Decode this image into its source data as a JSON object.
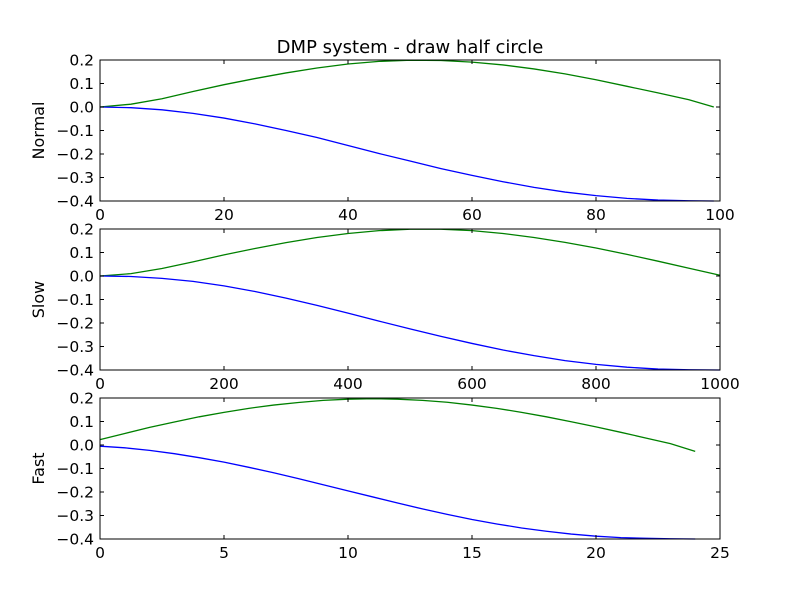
{
  "figure": {
    "title": "DMP system - draw half circle"
  },
  "chart_data": [
    {
      "type": "line",
      "ylabel": "Normal",
      "xlim": [
        0,
        100
      ],
      "ylim": [
        -0.4,
        0.2
      ],
      "xticks": [
        0,
        20,
        40,
        60,
        80,
        100
      ],
      "xtick_labels": [
        "0",
        "20",
        "40",
        "60",
        "80",
        "100"
      ],
      "yticks": [
        -0.4,
        -0.3,
        -0.2,
        -0.1,
        0.0,
        0.1,
        0.2
      ],
      "ytick_labels": [
        "−0.4",
        "−0.3",
        "−0.2",
        "−0.1",
        "0.0",
        "0.1",
        "0.2"
      ],
      "grid": false,
      "series": [
        {
          "color": "#008000",
          "x": [
            0,
            5,
            10,
            15,
            20,
            25,
            30,
            35,
            40,
            45,
            50,
            55,
            60,
            65,
            70,
            75,
            80,
            85,
            90,
            95,
            99
          ],
          "y": [
            0.0,
            0.012,
            0.035,
            0.066,
            0.095,
            0.121,
            0.145,
            0.166,
            0.183,
            0.194,
            0.199,
            0.198,
            0.191,
            0.179,
            0.162,
            0.141,
            0.116,
            0.088,
            0.06,
            0.031,
            0.0
          ]
        },
        {
          "color": "#0000ff",
          "x": [
            0,
            5,
            10,
            15,
            20,
            25,
            30,
            35,
            40,
            45,
            50,
            55,
            60,
            65,
            70,
            75,
            80,
            85,
            90,
            95,
            99
          ],
          "y": [
            0.0,
            -0.003,
            -0.012,
            -0.027,
            -0.047,
            -0.072,
            -0.1,
            -0.13,
            -0.164,
            -0.198,
            -0.23,
            -0.262,
            -0.291,
            -0.318,
            -0.342,
            -0.362,
            -0.377,
            -0.389,
            -0.396,
            -0.399,
            -0.4
          ]
        }
      ]
    },
    {
      "type": "line",
      "ylabel": "Slow",
      "xlim": [
        0,
        1000
      ],
      "ylim": [
        -0.4,
        0.2
      ],
      "xticks": [
        0,
        200,
        400,
        600,
        800,
        1000
      ],
      "xtick_labels": [
        "0",
        "200",
        "400",
        "600",
        "800",
        "1000"
      ],
      "yticks": [
        -0.4,
        -0.3,
        -0.2,
        -0.1,
        0.0,
        0.1,
        0.2
      ],
      "ytick_labels": [
        "−0.4",
        "−0.3",
        "−0.2",
        "−0.1",
        "0.0",
        "0.1",
        "0.2"
      ],
      "grid": false,
      "series": [
        {
          "color": "#008000",
          "x": [
            0,
            50,
            100,
            150,
            200,
            250,
            300,
            350,
            400,
            450,
            500,
            550,
            600,
            650,
            700,
            750,
            800,
            850,
            900,
            950,
            1000
          ],
          "y": [
            0.0,
            0.01,
            0.032,
            0.06,
            0.09,
            0.117,
            0.142,
            0.164,
            0.181,
            0.193,
            0.199,
            0.199,
            0.193,
            0.181,
            0.164,
            0.143,
            0.119,
            0.092,
            0.063,
            0.033,
            0.003
          ]
        },
        {
          "color": "#0000ff",
          "x": [
            0,
            50,
            100,
            150,
            200,
            250,
            300,
            350,
            400,
            450,
            500,
            550,
            600,
            650,
            700,
            750,
            800,
            850,
            900,
            950,
            1000
          ],
          "y": [
            0.0,
            -0.002,
            -0.01,
            -0.023,
            -0.042,
            -0.066,
            -0.094,
            -0.125,
            -0.158,
            -0.192,
            -0.225,
            -0.257,
            -0.287,
            -0.315,
            -0.339,
            -0.36,
            -0.376,
            -0.388,
            -0.396,
            -0.399,
            -0.4
          ]
        }
      ]
    },
    {
      "type": "line",
      "ylabel": "Fast",
      "xlim": [
        0,
        25
      ],
      "ylim": [
        -0.4,
        0.2
      ],
      "xticks": [
        0,
        5,
        10,
        15,
        20,
        25
      ],
      "xtick_labels": [
        "0",
        "5",
        "10",
        "15",
        "20",
        "25"
      ],
      "yticks": [
        -0.4,
        -0.3,
        -0.2,
        -0.1,
        0.0,
        0.1,
        0.2
      ],
      "ytick_labels": [
        "−0.4",
        "−0.3",
        "−0.2",
        "−0.1",
        "0.0",
        "0.1",
        "0.2"
      ],
      "grid": false,
      "series": [
        {
          "color": "#008000",
          "x": [
            0,
            1,
            2,
            3,
            4,
            5,
            6,
            7,
            8,
            9,
            10,
            11,
            12,
            13,
            14,
            15,
            16,
            17,
            18,
            19,
            20,
            21,
            22,
            23,
            24
          ],
          "y": [
            0.023,
            0.049,
            0.075,
            0.098,
            0.12,
            0.139,
            0.156,
            0.17,
            0.181,
            0.19,
            0.195,
            0.197,
            0.195,
            0.19,
            0.182,
            0.17,
            0.156,
            0.139,
            0.12,
            0.099,
            0.077,
            0.054,
            0.03,
            0.006,
            -0.027
          ]
        },
        {
          "color": "#0000ff",
          "x": [
            0,
            1,
            2,
            3,
            4,
            5,
            6,
            7,
            8,
            9,
            10,
            11,
            12,
            13,
            14,
            15,
            16,
            17,
            18,
            19,
            20,
            21,
            22,
            23,
            24
          ],
          "y": [
            -0.005,
            -0.012,
            -0.023,
            -0.037,
            -0.054,
            -0.073,
            -0.095,
            -0.118,
            -0.143,
            -0.169,
            -0.195,
            -0.221,
            -0.247,
            -0.272,
            -0.295,
            -0.317,
            -0.336,
            -0.353,
            -0.367,
            -0.379,
            -0.388,
            -0.394,
            -0.397,
            -0.399,
            -0.4
          ]
        }
      ]
    }
  ]
}
